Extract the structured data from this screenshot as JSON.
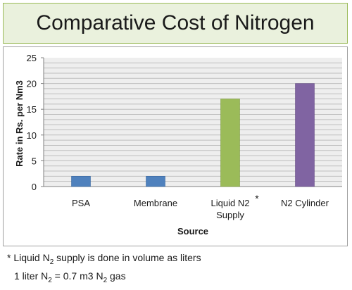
{
  "title": "Comparative Cost of Nitrogen",
  "footnote": {
    "line1": {
      "prefix": "* Liquid N",
      "sub": "2",
      "suffix": " supply is done in volume as liters"
    },
    "line2": {
      "a": "1 liter N",
      "a_sub": "2",
      "b": " = 0.7 m3 N",
      "b_sub": "2",
      "c": " gas"
    }
  },
  "chart_data": {
    "type": "bar",
    "categories": [
      "PSA",
      "Membrane",
      "Liquid N2 Supply",
      "N2 Cylinder"
    ],
    "category_lines": [
      [
        "PSA"
      ],
      [
        "Membrane"
      ],
      [
        "Liquid N2",
        "Supply"
      ],
      [
        "N2 Cylinder"
      ]
    ],
    "values": [
      2,
      2,
      17,
      20
    ],
    "colors": [
      "#4f81bd",
      "#4f81bd",
      "#9bbb59",
      "#8064a2"
    ],
    "annotations": [
      {
        "category": "Liquid N2 Supply",
        "text": "*"
      }
    ],
    "xlabel": "Source",
    "ylabel": "Rate in Rs. per Nm3",
    "ylim": [
      0,
      25
    ],
    "yticks": [
      0,
      5,
      10,
      15,
      20,
      25
    ],
    "grid": true
  }
}
